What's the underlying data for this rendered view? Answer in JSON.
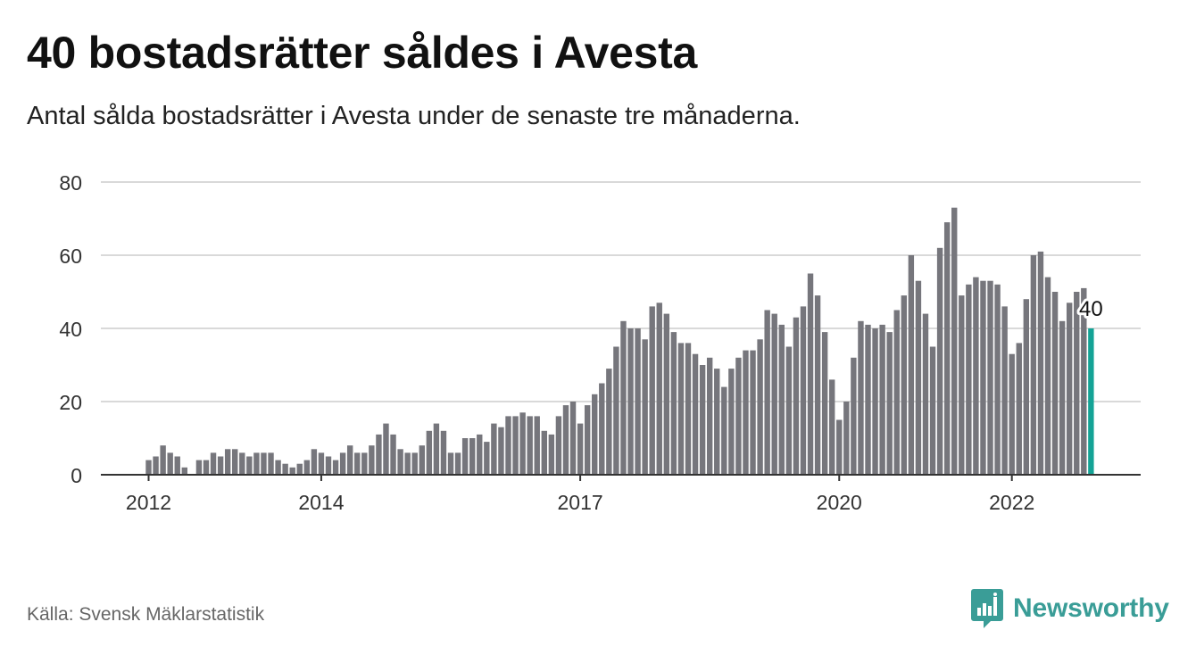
{
  "title": "40 bostadsrätter såldes i Avesta",
  "subtitle": "Antal sålda bostadsrätter i Avesta under de senaste tre månaderna.",
  "source": "Källa: Svensk Mäklarstatistik",
  "brand": "Newsworthy",
  "colors": {
    "bar": "#76767c",
    "highlight": "#14a396",
    "grid": "#d9d9d9",
    "axis": "#333333",
    "brand": "#3a9d97"
  },
  "chart_data": {
    "type": "bar",
    "title": "40 bostadsrätter såldes i Avesta",
    "subtitle": "Antal sålda bostadsrätter i Avesta under de senaste tre månaderna.",
    "xlabel": "",
    "ylabel": "",
    "ylim": [
      0,
      80
    ],
    "yticks": [
      0,
      20,
      40,
      60,
      80
    ],
    "xtick_labels": [
      {
        "label": "2012",
        "index": 0
      },
      {
        "label": "2014",
        "index": 24
      },
      {
        "label": "2017",
        "index": 60
      },
      {
        "label": "2020",
        "index": 96
      },
      {
        "label": "2022",
        "index": 120
      }
    ],
    "grid": true,
    "frequency": "monthly",
    "values": [
      4,
      5,
      8,
      6,
      5,
      2,
      0,
      4,
      4,
      6,
      5,
      7,
      7,
      6,
      5,
      6,
      6,
      6,
      4,
      3,
      2,
      3,
      4,
      7,
      6,
      5,
      4,
      6,
      8,
      6,
      6,
      8,
      11,
      14,
      11,
      7,
      6,
      6,
      8,
      12,
      14,
      12,
      6,
      6,
      10,
      10,
      11,
      9,
      14,
      13,
      16,
      16,
      17,
      16,
      16,
      12,
      11,
      16,
      19,
      20,
      14,
      19,
      22,
      25,
      29,
      35,
      42,
      40,
      40,
      37,
      46,
      47,
      44,
      39,
      36,
      36,
      33,
      30,
      32,
      29,
      24,
      29,
      32,
      34,
      34,
      37,
      45,
      44,
      41,
      35,
      43,
      46,
      55,
      49,
      39,
      26,
      15,
      20,
      32,
      42,
      41,
      40,
      41,
      39,
      45,
      49,
      60,
      53,
      44,
      35,
      62,
      69,
      73,
      49,
      52,
      54,
      53,
      53,
      52,
      46,
      33,
      36,
      48,
      60,
      61,
      54,
      50,
      42,
      47,
      50,
      51,
      40
    ],
    "highlight_last": true,
    "last_value_label": "40"
  }
}
